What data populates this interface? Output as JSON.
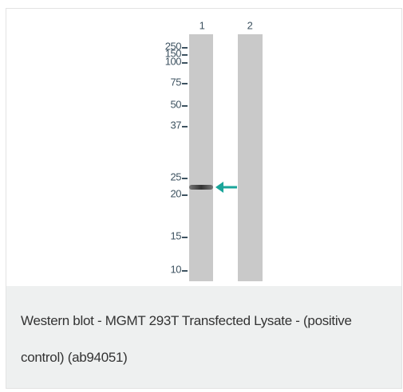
{
  "figure": {
    "lanes": [
      "1",
      "2"
    ],
    "markers": [
      "250",
      "150",
      "100",
      "75",
      "50",
      "37",
      "25",
      "20",
      "15",
      "10"
    ]
  },
  "caption": "Western blot - MGMT 293T Transfected Lysate - (positive control) (ab94051)"
}
